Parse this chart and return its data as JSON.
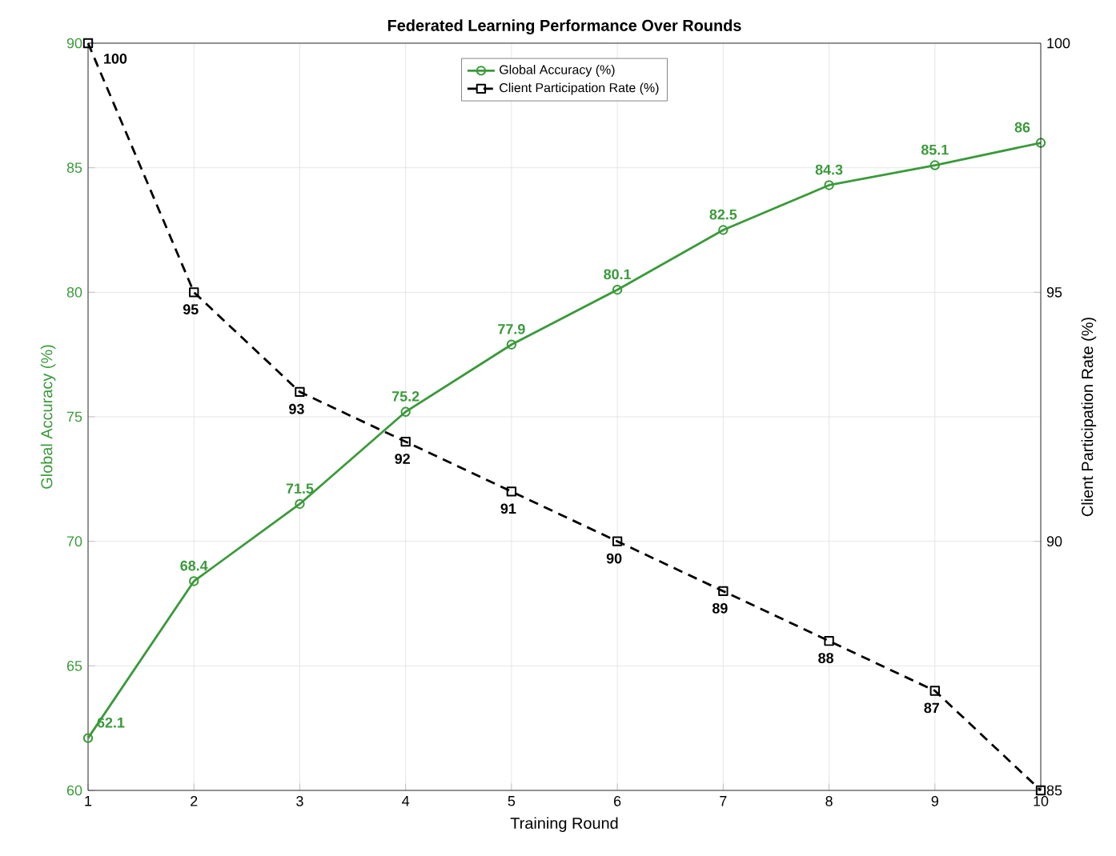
{
  "chart_data": {
    "type": "line",
    "title": "Federated Learning Performance Over Rounds",
    "xlabel": "Training Round",
    "ylabel": "Global Accuracy (%)",
    "y2label": "Client Participation Rate (%)",
    "x": [
      1,
      2,
      3,
      4,
      5,
      6,
      7,
      8,
      9,
      10
    ],
    "series": [
      {
        "name": "Global Accuracy (%)",
        "color": "#3a9a3a",
        "marker": "circle",
        "line_style": "solid",
        "values": [
          62.1,
          68.4,
          71.5,
          75.2,
          77.9,
          80.1,
          82.5,
          84.3,
          85.1,
          86
        ],
        "value_labels": [
          "62.1",
          "68.4",
          "71.5",
          "75.2",
          "77.9",
          "80.1",
          "82.5",
          "84.3",
          "85.1",
          "86"
        ]
      },
      {
        "name": "Client Participation Rate (%)",
        "color": "#000000",
        "marker": "square",
        "line_style": "dashed",
        "axis": "y2",
        "values": [
          100,
          95,
          93,
          92,
          91,
          90,
          89,
          88,
          87,
          85
        ],
        "value_labels": [
          "100",
          "95",
          "93",
          "92",
          "91",
          "90",
          "89",
          "88",
          "87",
          null
        ]
      }
    ],
    "xlim": [
      1,
      10
    ],
    "xticks": [
      1,
      2,
      3,
      4,
      5,
      6,
      7,
      8,
      9,
      10
    ],
    "ylim": [
      60,
      90
    ],
    "yticks": [
      60,
      65,
      70,
      75,
      80,
      85,
      90
    ],
    "y2lim": [
      85,
      100
    ],
    "y2ticks": [
      85,
      90,
      95,
      100
    ],
    "grid": true,
    "legend": "top"
  }
}
